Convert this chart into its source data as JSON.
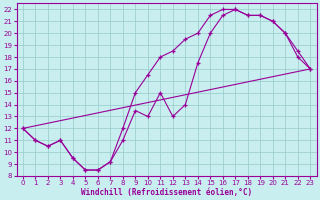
{
  "xlabel": "Windchill (Refroidissement éolien,°C)",
  "xlim": [
    -0.5,
    23.5
  ],
  "ylim": [
    8,
    22.5
  ],
  "xticks": [
    0,
    1,
    2,
    3,
    4,
    5,
    6,
    7,
    8,
    9,
    10,
    11,
    12,
    13,
    14,
    15,
    16,
    17,
    18,
    19,
    20,
    21,
    22,
    23
  ],
  "yticks": [
    8,
    9,
    10,
    11,
    12,
    13,
    14,
    15,
    16,
    17,
    18,
    19,
    20,
    21,
    22
  ],
  "bg_color": "#c8eef0",
  "grid_color": "#9dcfcf",
  "line_color": "#990099",
  "series1_x": [
    0,
    1,
    2,
    3,
    4,
    5,
    6,
    7,
    8,
    9,
    10,
    11,
    12,
    13,
    14,
    15,
    16,
    17,
    18,
    19,
    20,
    21,
    22,
    23
  ],
  "series1_y": [
    12,
    11,
    10.5,
    11,
    9.5,
    8.5,
    8.5,
    9.2,
    11,
    13.5,
    13,
    15,
    13,
    14,
    17.5,
    20,
    21.5,
    22,
    21.5,
    21.5,
    21,
    20,
    18,
    17
  ],
  "series2_x": [
    0,
    1,
    2,
    3,
    4,
    5,
    6,
    7,
    8,
    9,
    10,
    11,
    12,
    13,
    14,
    15,
    16,
    17,
    18,
    19,
    20,
    21,
    22,
    23
  ],
  "series2_y": [
    12,
    11,
    10.5,
    11,
    9.5,
    8.5,
    8.5,
    9.2,
    12,
    15,
    16.5,
    18,
    18.5,
    19.5,
    20,
    21.5,
    22,
    22,
    21.5,
    21.5,
    21,
    20,
    18.5,
    17
  ],
  "series3_x": [
    0,
    23
  ],
  "series3_y": [
    12,
    17
  ]
}
